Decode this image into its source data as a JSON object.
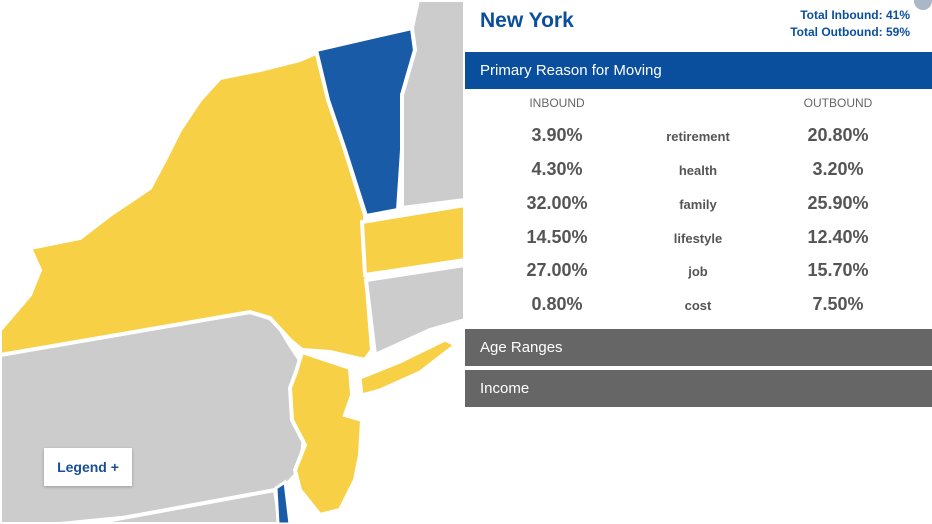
{
  "colors": {
    "inbound_state": "#f7d046",
    "outbound_state": "#1a5ba8",
    "neutral_state": "#cccccc",
    "brand_blue": "#0a4f9e",
    "section_gray": "#666666"
  },
  "legend": {
    "label": "Legend +"
  },
  "panel": {
    "state_name": "New York",
    "total_inbound": "Total Inbound: 41%",
    "total_outbound": "Total Outbound: 59%",
    "sections": {
      "primary": "Primary Reason for Moving",
      "age": "Age Ranges",
      "income": "Income"
    },
    "columns": {
      "inbound": "INBOUND",
      "outbound": "OUTBOUND"
    },
    "rows": [
      {
        "inbound": "3.90%",
        "reason": "retirement",
        "outbound": "20.80%"
      },
      {
        "inbound": "4.30%",
        "reason": "health",
        "outbound": "3.20%"
      },
      {
        "inbound": "32.00%",
        "reason": "family",
        "outbound": "25.90%"
      },
      {
        "inbound": "14.50%",
        "reason": "lifestyle",
        "outbound": "12.40%"
      },
      {
        "inbound": "27.00%",
        "reason": "job",
        "outbound": "15.70%"
      },
      {
        "inbound": "0.80%",
        "reason": "cost",
        "outbound": "7.50%"
      }
    ]
  }
}
